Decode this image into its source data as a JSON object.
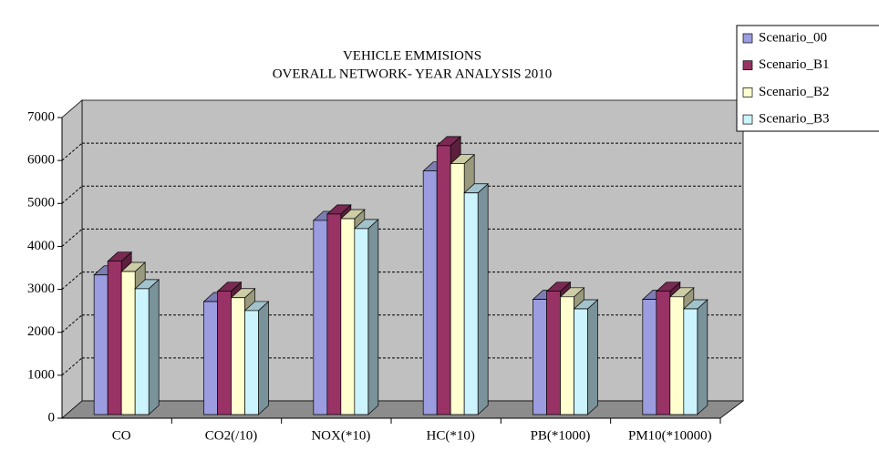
{
  "chart_data": {
    "type": "bar3d",
    "title": "VEHICLE EMMISIONS",
    "subtitle": "OVERALL NETWORK- YEAR ANALYSIS 2010",
    "categories": [
      "CO",
      "CO2(/10)",
      "NOX(*10)",
      "HC(*10)",
      "PB(*1000)",
      "PM10(*10000)"
    ],
    "series": [
      {
        "name": "Scenario_00",
        "color": "#9c9ce0",
        "values": [
          3250,
          2630,
          4520,
          5670,
          2680,
          2680
        ]
      },
      {
        "name": "Scenario_B1",
        "color": "#993366",
        "values": [
          3570,
          2870,
          4670,
          6260,
          2870,
          2870
        ]
      },
      {
        "name": "Scenario_B2",
        "color": "#ffffd0",
        "values": [
          3330,
          2720,
          4560,
          5840,
          2740,
          2740
        ]
      },
      {
        "name": "Scenario_B3",
        "color": "#ccf4ff",
        "values": [
          2930,
          2420,
          4330,
          5160,
          2460,
          2460
        ]
      }
    ],
    "ylim": [
      0,
      7000
    ],
    "yticks": [
      0,
      1000,
      2000,
      3000,
      4000,
      5000,
      6000,
      7000
    ],
    "grid": true,
    "legend": "top-right"
  }
}
